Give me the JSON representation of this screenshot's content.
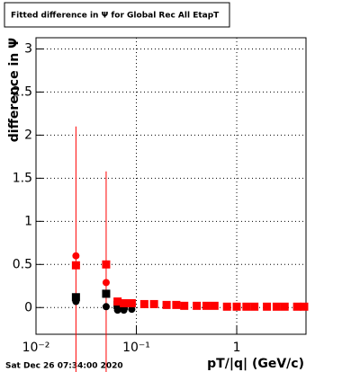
{
  "chart_data": {
    "type": "scatter",
    "title": "Fitted difference in Ψ  for Global Rec All EtapT",
    "y_label": "difference in  Ψ",
    "x_label": "pT/|q| (GeV/c)",
    "footer": "Sat Dec 26 07:34:00 2020",
    "log_x": true,
    "grid": true,
    "xlim": [
      0.01,
      4.9
    ],
    "ylim": [
      -0.31,
      3.13
    ],
    "xticks": [
      {
        "value": 0.01,
        "label": "10⁻²"
      },
      {
        "value": 0.1,
        "label": "10⁻¹"
      },
      1
    ],
    "yticks": [
      0,
      0.5,
      1,
      1.5,
      2,
      2.5,
      3
    ],
    "series": [
      {
        "color": "#ff0000",
        "marker": "circle",
        "x": [
          0.025,
          0.05,
          0.065,
          0.075,
          0.09
        ],
        "values": [
          0.6,
          0.29,
          0.05,
          0.04,
          0.03
        ],
        "errors": [
          1.5,
          1.29,
          0.05,
          0.04,
          0.03
        ]
      },
      {
        "color": "#000000",
        "marker": "square",
        "x": [
          0.025,
          0.05,
          0.065,
          0.075
        ],
        "values": [
          0.12,
          0.16,
          0.03,
          0.02
        ]
      },
      {
        "color": "#000000",
        "marker": "circle",
        "x": [
          0.025,
          0.05,
          0.065,
          0.075,
          0.09
        ],
        "values": [
          0.07,
          0.01,
          -0.03,
          -0.03,
          -0.02
        ]
      },
      {
        "color": "#ff0000",
        "marker": "square",
        "x": [
          0.025,
          0.05,
          0.065,
          0.075,
          0.09,
          0.12,
          0.15,
          0.2,
          0.25,
          0.3,
          0.4,
          0.5,
          0.6,
          0.8,
          1,
          1.25,
          1.5,
          2,
          2.5,
          3,
          4,
          4.7
        ],
        "values": [
          0.49,
          0.5,
          0.07,
          0.05,
          0.05,
          0.04,
          0.04,
          0.03,
          0.03,
          0.02,
          0.02,
          0.02,
          0.02,
          0.01,
          0.01,
          0.01,
          0.01,
          0.01,
          0.01,
          0.01,
          0.01,
          0.01
        ]
      }
    ]
  }
}
